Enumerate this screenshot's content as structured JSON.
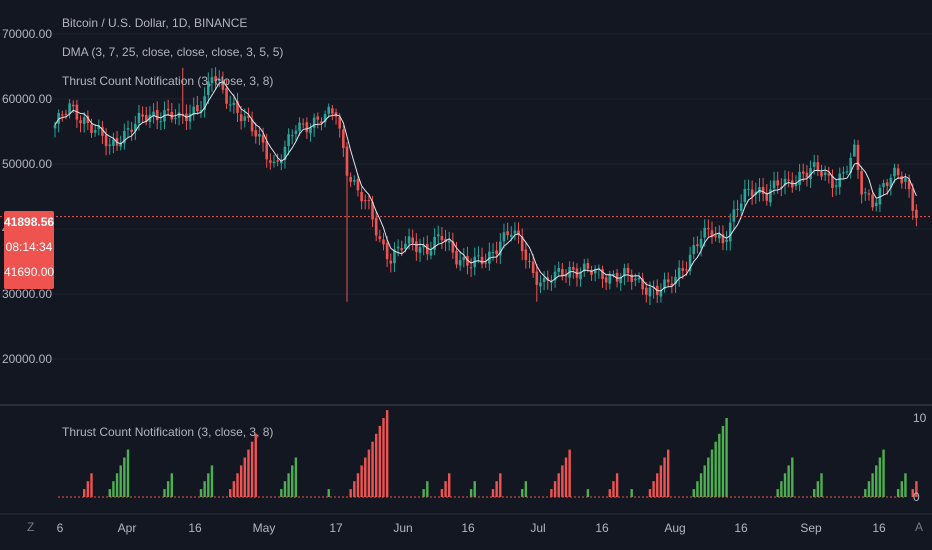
{
  "chart_data": [
    {
      "type": "candlestick",
      "title": "Bitcoin / U.S. Dollar, 1D, BINANCE",
      "indicators": [
        "DMA (3, 7, 25, close, close, close, 3, 5, 5)",
        "Thrust Count Notification (3, close, 3, 8)"
      ],
      "ylim": [
        14000,
        74000
      ],
      "yticks": [
        "70000.00",
        "60000.00",
        "50000.00",
        "40000.00",
        "30000.00",
        "20000.00"
      ],
      "xlabels": [
        "6",
        "Apr",
        "16",
        "May",
        "17",
        "Jun",
        "16",
        "Jul",
        "16",
        "Aug",
        "16",
        "Sep",
        "16"
      ],
      "price_anchors": [
        [
          0,
          56000
        ],
        [
          4,
          58500
        ],
        [
          8,
          57000
        ],
        [
          12,
          54500
        ],
        [
          15,
          52500
        ],
        [
          18,
          54500
        ],
        [
          22,
          56000
        ],
        [
          26,
          57500
        ],
        [
          30,
          58000
        ],
        [
          34,
          56500
        ],
        [
          38,
          58500
        ],
        [
          41,
          60000
        ],
        [
          43,
          63500
        ],
        [
          46,
          61000
        ],
        [
          50,
          58500
        ],
        [
          54,
          55000
        ],
        [
          57,
          53000
        ],
        [
          60,
          50000
        ],
        [
          63,
          52000
        ],
        [
          66,
          55500
        ],
        [
          70,
          56500
        ],
        [
          74,
          57000
        ],
        [
          77,
          58000
        ],
        [
          80,
          49500
        ],
        [
          83,
          45500
        ],
        [
          86,
          43000
        ],
        [
          89,
          38500
        ],
        [
          92,
          35500
        ],
        [
          95,
          37000
        ],
        [
          98,
          38000
        ],
        [
          102,
          37000
        ],
        [
          106,
          38500
        ],
        [
          110,
          36000
        ],
        [
          114,
          34500
        ],
        [
          118,
          35000
        ],
        [
          122,
          38500
        ],
        [
          125,
          39500
        ],
        [
          128,
          37000
        ],
        [
          131,
          33500
        ],
        [
          134,
          31500
        ],
        [
          137,
          32500
        ],
        [
          141,
          34000
        ],
        [
          145,
          33500
        ],
        [
          149,
          33000
        ],
        [
          153,
          33000
        ],
        [
          157,
          32500
        ],
        [
          161,
          31500
        ],
        [
          165,
          30500
        ],
        [
          168,
          31000
        ],
        [
          171,
          33500
        ],
        [
          174,
          36000
        ],
        [
          177,
          38500
        ],
        [
          180,
          39500
        ],
        [
          183,
          38500
        ],
        [
          186,
          42000
        ],
        [
          189,
          45000
        ],
        [
          192,
          46500
        ],
        [
          195,
          45500
        ],
        [
          198,
          46500
        ],
        [
          201,
          47000
        ],
        [
          204,
          48500
        ],
        [
          207,
          49000
        ],
        [
          210,
          48500
        ],
        [
          213,
          47500
        ],
        [
          216,
          48500
        ],
        [
          219,
          51500
        ],
        [
          221,
          46000
        ],
        [
          224,
          44500
        ],
        [
          227,
          46500
        ],
        [
          230,
          48000
        ],
        [
          233,
          48000
        ],
        [
          236,
          41700
        ]
      ],
      "price_wicks": [
        [
          35,
          64800
        ],
        [
          80,
          28800
        ],
        [
          132,
          28800
        ],
        [
          164,
          29300
        ],
        [
          219,
          52900
        ]
      ],
      "last_price": "41898.56",
      "countdown": "08:14:34",
      "last_close": "41690.00",
      "oscillator": {
        "label": "Thrust Count Notification (3, close, 3, 8)",
        "ylim": [
          0,
          10
        ],
        "yticks": [
          "10",
          "0"
        ],
        "segments": [
          {
            "direction": "down",
            "start": 8,
            "values": [
              1,
              2,
              3
            ]
          },
          {
            "direction": "up",
            "start": 15,
            "values": [
              1,
              2,
              3,
              4,
              5,
              6
            ]
          },
          {
            "direction": "up",
            "start": 30,
            "values": [
              1,
              2,
              3
            ]
          },
          {
            "direction": "up",
            "start": 40,
            "values": [
              1,
              2,
              3,
              4
            ]
          },
          {
            "direction": "down",
            "start": 48,
            "values": [
              1,
              2,
              3,
              4,
              5,
              6,
              7,
              8
            ]
          },
          {
            "direction": "up",
            "start": 62,
            "values": [
              1,
              2,
              3,
              4,
              5
            ]
          },
          {
            "direction": "up",
            "start": 75,
            "values": [
              1
            ]
          },
          {
            "direction": "down",
            "start": 81,
            "values": [
              1,
              2,
              3,
              4,
              5,
              6,
              7,
              8,
              9,
              10,
              11
            ]
          },
          {
            "direction": "up",
            "start": 101,
            "values": [
              1,
              2
            ]
          },
          {
            "direction": "down",
            "start": 106,
            "values": [
              1,
              2,
              3
            ]
          },
          {
            "direction": "up",
            "start": 114,
            "values": [
              1,
              2
            ]
          },
          {
            "direction": "down",
            "start": 120,
            "values": [
              1,
              2,
              3
            ]
          },
          {
            "direction": "up",
            "start": 128,
            "values": [
              1,
              2
            ]
          },
          {
            "direction": "down",
            "start": 136,
            "values": [
              1,
              2,
              3,
              4,
              5,
              6
            ]
          },
          {
            "direction": "up",
            "start": 146,
            "values": [
              1
            ]
          },
          {
            "direction": "down",
            "start": 152,
            "values": [
              1,
              2,
              3
            ]
          },
          {
            "direction": "up",
            "start": 158,
            "values": [
              1
            ]
          },
          {
            "direction": "down",
            "start": 163,
            "values": [
              1,
              2,
              3,
              4,
              5,
              6
            ]
          },
          {
            "direction": "up",
            "start": 175,
            "values": [
              1,
              2,
              3,
              4,
              5,
              6,
              7,
              8,
              9,
              10
            ]
          },
          {
            "direction": "up",
            "start": 198,
            "values": [
              1,
              2,
              3,
              4,
              5
            ]
          },
          {
            "direction": "up",
            "start": 208,
            "values": [
              1,
              2,
              3
            ]
          },
          {
            "direction": "up",
            "start": 222,
            "values": [
              1,
              2,
              3,
              4,
              5,
              6
            ]
          },
          {
            "direction": "up",
            "start": 231,
            "values": [
              1,
              2,
              3
            ]
          },
          {
            "direction": "down",
            "start": 235,
            "values": [
              1,
              2
            ]
          }
        ]
      }
    }
  ],
  "colors": {
    "bg": "#131722",
    "up": "#26a69a",
    "down": "#ef5350",
    "ma": "#e0e3eb",
    "grid": "#1e222d",
    "text": "#b2b5be",
    "osc_up": "#4caf50",
    "osc_down": "#ef5350"
  },
  "corner": {
    "left": "Z",
    "right": "A"
  }
}
